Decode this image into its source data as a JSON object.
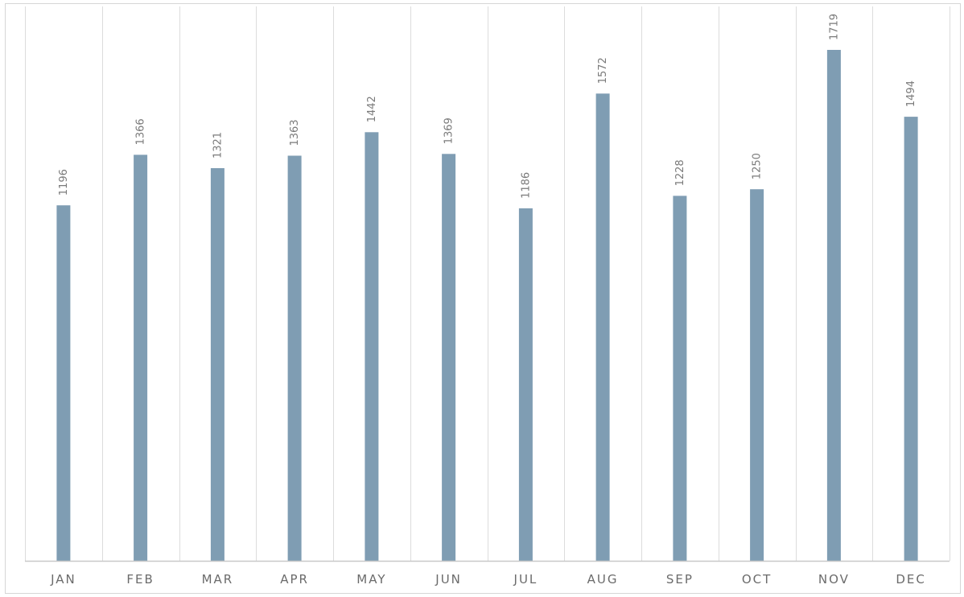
{
  "chart_data": {
    "type": "bar",
    "title": "",
    "xlabel": "",
    "ylabel": "",
    "categories": [
      "JAN",
      "FEB",
      "MAR",
      "APR",
      "MAY",
      "JUN",
      "JUL",
      "AUG",
      "SEP",
      "OCT",
      "NOV",
      "DEC"
    ],
    "values": [
      1196,
      1366,
      1321,
      1363,
      1442,
      1369,
      1186,
      1572,
      1228,
      1250,
      1719,
      1494
    ],
    "data_labels": [
      "1196",
      "1366",
      "1321",
      "1363",
      "1442",
      "1369",
      "1186",
      "1572",
      "1228",
      "1250",
      "1719",
      "1494"
    ],
    "ylim": [
      0,
      1719
    ],
    "grid": "vertical",
    "legend": "none",
    "bar_color": "#7f9db3",
    "grid_color": "#dcdcdc",
    "axis_color": "#c8c8c8"
  }
}
